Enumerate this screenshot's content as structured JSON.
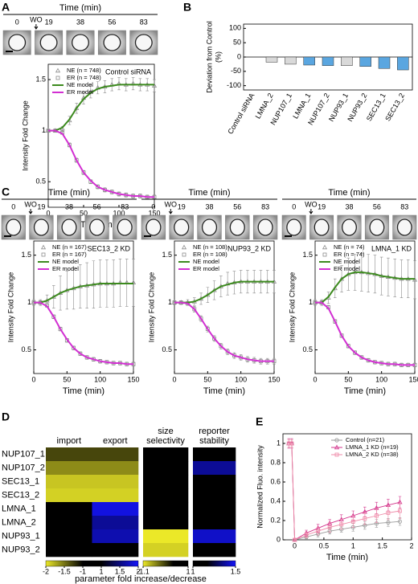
{
  "chart_data": [
    {
      "type": "line",
      "panel": "A",
      "strip": {
        "title": "Time (min)",
        "labels": [
          "0",
          "19",
          "38",
          "56",
          "83"
        ],
        "washout": "WO"
      },
      "annotation": "Control siRNA",
      "xlabel": "Time (min)",
      "ylabel": "Intensity Fold Change",
      "xlim": [
        0,
        150
      ],
      "ylim": [
        0.25,
        1.65
      ],
      "xticks": [
        0,
        50,
        100,
        150
      ],
      "yticks": [
        0.5,
        1,
        1.5
      ],
      "legend": "upper left",
      "x": [
        0,
        10,
        20,
        30,
        40,
        50,
        60,
        70,
        80,
        90,
        100,
        110,
        120,
        130,
        140,
        150
      ],
      "series": [
        {
          "name": "NE (n = 748)",
          "color": "#8c8c8c",
          "marker": "triangle",
          "values": [
            1,
            1,
            1.02,
            1.1,
            1.22,
            1.32,
            1.38,
            1.42,
            1.43,
            1.45,
            1.46,
            1.45,
            1.46,
            1.45,
            1.45,
            1.44
          ],
          "errors": [
            0.01,
            0.01,
            0.02,
            0.04,
            0.05,
            0.06,
            0.06,
            0.06,
            0.06,
            0.06,
            0.06,
            0.06,
            0.06,
            0.06,
            0.06,
            0.06
          ]
        },
        {
          "name": "ER (n = 748)",
          "color": "#8c8c8c",
          "marker": "square",
          "values": [
            1,
            1,
            0.98,
            0.86,
            0.71,
            0.59,
            0.5,
            0.45,
            0.42,
            0.4,
            0.38,
            0.37,
            0.36,
            0.36,
            0.35,
            0.35
          ],
          "errors": [
            0.01,
            0.01,
            0.01,
            0.02,
            0.02,
            0.02,
            0.02,
            0.02,
            0.02,
            0.02,
            0.02,
            0.02,
            0.02,
            0.02,
            0.02,
            0.02
          ]
        },
        {
          "name": "NE model",
          "color": "#3c8a1e",
          "values": [
            1,
            1,
            1.03,
            1.11,
            1.22,
            1.31,
            1.37,
            1.41,
            1.43,
            1.44,
            1.45,
            1.45,
            1.45,
            1.45,
            1.45,
            1.45
          ]
        },
        {
          "name": "ER model",
          "color": "#d22fd2",
          "values": [
            1,
            1,
            0.97,
            0.86,
            0.71,
            0.59,
            0.51,
            0.45,
            0.42,
            0.4,
            0.38,
            0.37,
            0.36,
            0.36,
            0.35,
            0.35
          ]
        }
      ]
    },
    {
      "type": "bar",
      "panel": "B",
      "ylabel": [
        "Deviation from Control",
        "(%)"
      ],
      "categories": [
        "Control siRNA",
        "LMNA_2",
        "NUP107_1",
        "LMNA_1",
        "NUP107_2",
        "NUP93_1",
        "NUP93_2",
        "SEC13_1",
        "SEC13_2"
      ],
      "values": [
        0,
        -18,
        -25,
        -28,
        -30,
        -30,
        -33,
        -40,
        -45
      ],
      "colors": [
        "#bbbbbb",
        "#d9d9d9",
        "#d9d9d9",
        "#5aa6e0",
        "#5aa6e0",
        "#d9d9d9",
        "#5aa6e0",
        "#5aa6e0",
        "#5aa6e0"
      ],
      "ylim": [
        -115,
        115
      ],
      "yticks": [
        -100,
        -50,
        0,
        50,
        100
      ]
    },
    {
      "type": "line",
      "panel": "C",
      "strip": {
        "title": "Time (min)",
        "labels": [
          "0",
          "19",
          "38",
          "56",
          "83"
        ],
        "washout": "WO"
      },
      "annotation": "SEC13_2 KD",
      "xlabel": "Time (min)",
      "ylabel": "Intensity Fold Change",
      "xlim": [
        0,
        150
      ],
      "ylim": [
        0.25,
        1.65
      ],
      "xticks": [
        0,
        50,
        100,
        150
      ],
      "yticks": [
        0.5,
        1,
        1.5
      ],
      "legend": "upper left",
      "x": [
        0,
        10,
        20,
        30,
        40,
        50,
        60,
        70,
        80,
        90,
        100,
        110,
        120,
        130,
        140,
        150
      ],
      "series": [
        {
          "name": "NE (n = 167)",
          "color": "#8c8c8c",
          "marker": "triangle",
          "values": [
            1,
            1,
            1.02,
            1.06,
            1.1,
            1.13,
            1.15,
            1.17,
            1.18,
            1.19,
            1.2,
            1.2,
            1.2,
            1.21,
            1.21,
            1.21
          ],
          "errors": [
            0.03,
            0.03,
            0.06,
            0.12,
            0.18,
            0.2,
            0.22,
            0.23,
            0.24,
            0.25,
            0.25,
            0.25,
            0.25,
            0.25,
            0.25,
            0.25
          ]
        },
        {
          "name": "ER (n = 167)",
          "color": "#8c8c8c",
          "marker": "square",
          "values": [
            1,
            1,
            0.97,
            0.85,
            0.72,
            0.6,
            0.52,
            0.46,
            0.42,
            0.4,
            0.38,
            0.37,
            0.36,
            0.36,
            0.35,
            0.35
          ],
          "errors": [
            0.02,
            0.02,
            0.02,
            0.02,
            0.02,
            0.02,
            0.02,
            0.02,
            0.02,
            0.02,
            0.02,
            0.02,
            0.02,
            0.02,
            0.02,
            0.02
          ]
        },
        {
          "name": "NE model",
          "color": "#3c8a1e",
          "values": [
            1,
            1,
            1.02,
            1.06,
            1.1,
            1.13,
            1.15,
            1.17,
            1.18,
            1.19,
            1.2,
            1.2,
            1.2,
            1.2,
            1.2,
            1.2
          ]
        },
        {
          "name": "ER model",
          "color": "#d22fd2",
          "values": [
            1,
            1,
            0.96,
            0.85,
            0.72,
            0.61,
            0.52,
            0.46,
            0.42,
            0.4,
            0.38,
            0.37,
            0.36,
            0.36,
            0.35,
            0.35
          ]
        }
      ]
    },
    {
      "type": "line",
      "strip": {
        "title": "Time (min)",
        "labels": [
          "0",
          "19",
          "38",
          "56",
          "83"
        ],
        "washout": "WO"
      },
      "annotation": "NUP93_2 KD",
      "xlabel": "Time (min)",
      "ylabel": "Intensity Fold Change",
      "xlim": [
        0,
        150
      ],
      "ylim": [
        0.25,
        1.65
      ],
      "xticks": [
        0,
        50,
        100,
        150
      ],
      "yticks": [
        0.5,
        1,
        1.5
      ],
      "legend": "upper left",
      "x": [
        0,
        10,
        20,
        30,
        40,
        50,
        60,
        70,
        80,
        90,
        100,
        110,
        120,
        130,
        140,
        150
      ],
      "series": [
        {
          "name": "NE (n = 108)",
          "color": "#8c8c8c",
          "marker": "triangle",
          "values": [
            1,
            1,
            1,
            1.01,
            1.04,
            1.08,
            1.13,
            1.17,
            1.2,
            1.21,
            1.22,
            1.22,
            1.22,
            1.22,
            1.22,
            1.22
          ],
          "errors": [
            0.02,
            0.02,
            0.03,
            0.04,
            0.06,
            0.08,
            0.1,
            0.11,
            0.12,
            0.12,
            0.12,
            0.12,
            0.12,
            0.12,
            0.12,
            0.12
          ]
        },
        {
          "name": "ER (n = 108)",
          "color": "#8c8c8c",
          "marker": "square",
          "values": [
            1,
            1,
            0.99,
            0.93,
            0.83,
            0.72,
            0.62,
            0.54,
            0.48,
            0.44,
            0.42,
            0.4,
            0.39,
            0.38,
            0.38,
            0.38
          ],
          "errors": [
            0.02,
            0.02,
            0.02,
            0.03,
            0.03,
            0.03,
            0.03,
            0.03,
            0.03,
            0.03,
            0.03,
            0.03,
            0.03,
            0.03,
            0.03,
            0.03
          ]
        },
        {
          "name": "NE model",
          "color": "#3c8a1e",
          "values": [
            1,
            1,
            1,
            1.01,
            1.04,
            1.08,
            1.13,
            1.17,
            1.19,
            1.21,
            1.22,
            1.22,
            1.22,
            1.22,
            1.22,
            1.22
          ]
        },
        {
          "name": "ER model",
          "color": "#d22fd2",
          "values": [
            1,
            1,
            0.99,
            0.93,
            0.83,
            0.72,
            0.62,
            0.54,
            0.48,
            0.44,
            0.42,
            0.4,
            0.39,
            0.38,
            0.38,
            0.38
          ]
        }
      ]
    },
    {
      "type": "line",
      "strip": {
        "title": "Time (min)",
        "labels": [
          "0",
          "19",
          "38",
          "56",
          "83"
        ],
        "washout": "WO"
      },
      "annotation": "LMNA_1 KD",
      "xlabel": "Time (min)",
      "ylabel": "Intensity Fold Change",
      "xlim": [
        0,
        150
      ],
      "ylim": [
        0.25,
        1.65
      ],
      "xticks": [
        0,
        50,
        100,
        150
      ],
      "yticks": [
        0.5,
        1,
        1.5
      ],
      "legend": "upper left",
      "x": [
        0,
        10,
        20,
        30,
        40,
        50,
        60,
        70,
        80,
        90,
        100,
        110,
        120,
        130,
        140,
        150
      ],
      "series": [
        {
          "name": "NE (n = 74)",
          "color": "#8c8c8c",
          "marker": "triangle",
          "values": [
            1,
            1,
            1.05,
            1.15,
            1.25,
            1.3,
            1.32,
            1.32,
            1.31,
            1.3,
            1.28,
            1.27,
            1.26,
            1.25,
            1.25,
            1.24
          ],
          "errors": [
            0.03,
            0.03,
            0.06,
            0.1,
            0.14,
            0.17,
            0.19,
            0.2,
            0.2,
            0.2,
            0.2,
            0.2,
            0.2,
            0.2,
            0.2,
            0.2
          ]
        },
        {
          "name": "ER (n = 74)",
          "color": "#8c8c8c",
          "marker": "square",
          "values": [
            1,
            1,
            0.95,
            0.8,
            0.65,
            0.54,
            0.47,
            0.42,
            0.39,
            0.37,
            0.36,
            0.35,
            0.35,
            0.34,
            0.34,
            0.34
          ],
          "errors": [
            0.02,
            0.02,
            0.02,
            0.02,
            0.02,
            0.02,
            0.02,
            0.02,
            0.02,
            0.02,
            0.02,
            0.02,
            0.02,
            0.02,
            0.02,
            0.02
          ]
        },
        {
          "name": "NE model",
          "color": "#3c8a1e",
          "values": [
            1,
            1,
            1.06,
            1.16,
            1.25,
            1.3,
            1.32,
            1.32,
            1.31,
            1.3,
            1.28,
            1.27,
            1.26,
            1.25,
            1.25,
            1.25
          ]
        },
        {
          "name": "ER model",
          "color": "#d22fd2",
          "values": [
            1,
            1,
            0.94,
            0.8,
            0.65,
            0.54,
            0.47,
            0.42,
            0.39,
            0.37,
            0.36,
            0.35,
            0.35,
            0.34,
            0.34,
            0.34
          ]
        }
      ]
    },
    {
      "type": "heatmap",
      "panel": "D",
      "xlabel": "parameter fold increase/decrease",
      "rows": [
        "NUP107_1",
        "NUP107_2",
        "SEC13_1",
        "SEC13_2",
        "LMNA_1",
        "LMNA_2",
        "NUP93_1",
        "NUP93_2"
      ],
      "blocks": [
        {
          "columns": [
            [
              "import"
            ],
            [
              "export"
            ]
          ],
          "clim": [
            -2,
            2
          ],
          "cticks": [
            -2,
            -1.5,
            -1,
            1,
            1.5,
            2
          ],
          "values": [
            [
              -1.3,
              -1.3
            ],
            [
              -1.6,
              -1.6
            ],
            [
              -1.85,
              -1.85
            ],
            [
              -1.9,
              -1.9
            ],
            [
              1,
              1.9
            ],
            [
              1,
              1.6
            ],
            [
              1,
              1.7
            ],
            [
              1,
              1
            ]
          ]
        },
        {
          "columns": [
            [
              "size",
              "selectivity"
            ]
          ],
          "clim": [
            -1.1,
            1
          ],
          "cticks": [
            -1.1,
            1
          ],
          "values": [
            [
              1
            ],
            [
              1
            ],
            [
              1
            ],
            [
              1
            ],
            [
              1
            ],
            [
              1
            ],
            [
              -1.1
            ],
            [
              -1.09
            ]
          ]
        },
        {
          "columns": [
            [
              "reporter",
              "stability"
            ]
          ],
          "clim": [
            1,
            1.5
          ],
          "cticks": [
            1,
            1.5
          ],
          "values": [
            [
              1
            ],
            [
              1.3
            ],
            [
              1
            ],
            [
              1
            ],
            [
              1
            ],
            [
              1
            ],
            [
              1.4
            ],
            [
              1
            ]
          ]
        }
      ]
    },
    {
      "type": "line",
      "panel": "E",
      "xlabel": "Time (min)",
      "ylabel": "Normalized Fluo. intensity",
      "xlim": [
        -0.2,
        2
      ],
      "ylim": [
        0,
        1.1
      ],
      "xticks": [
        0,
        0.5,
        1,
        1.5,
        2
      ],
      "yticks": [
        0,
        0.2,
        0.4,
        0.6,
        0.8,
        1
      ],
      "legend": "upper right",
      "connect_markers": true,
      "x": [
        -0.1,
        -0.05,
        0,
        0.2,
        0.4,
        0.6,
        0.8,
        1,
        1.2,
        1.4,
        1.6,
        1.8
      ],
      "series": [
        {
          "name": "Control (n=21)",
          "color": "#9a9a9a",
          "marker": "circle",
          "values": [
            1,
            1,
            0,
            0.03,
            0.06,
            0.09,
            0.11,
            0.13,
            0.15,
            0.17,
            0.18,
            0.19
          ],
          "errors": [
            0.04,
            0.04,
            0.01,
            0.02,
            0.03,
            0.03,
            0.03,
            0.04,
            0.04,
            0.04,
            0.04,
            0.04
          ]
        },
        {
          "name": "LMNA_1 KD (n=19)",
          "color": "#d3348c",
          "marker": "triangle",
          "values": [
            1,
            1,
            0,
            0.07,
            0.12,
            0.17,
            0.21,
            0.25,
            0.29,
            0.33,
            0.36,
            0.39
          ],
          "errors": [
            0.05,
            0.05,
            0.01,
            0.03,
            0.04,
            0.04,
            0.05,
            0.05,
            0.05,
            0.06,
            0.06,
            0.06
          ]
        },
        {
          "name": "LMNA_2 KD (n=38)",
          "color": "#ef8aa8",
          "marker": "square",
          "values": [
            1,
            1,
            0,
            0.05,
            0.09,
            0.13,
            0.16,
            0.19,
            0.22,
            0.25,
            0.28,
            0.3
          ],
          "errors": [
            0.04,
            0.04,
            0.01,
            0.03,
            0.04,
            0.05,
            0.05,
            0.06,
            0.06,
            0.07,
            0.07,
            0.08
          ]
        }
      ]
    }
  ]
}
